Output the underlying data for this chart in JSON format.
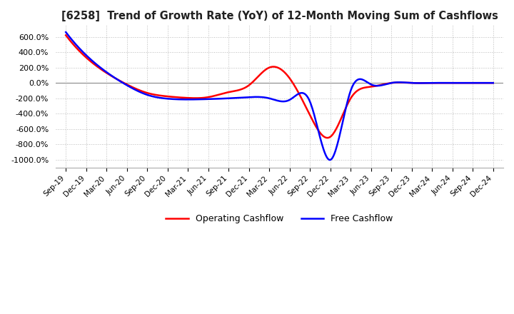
{
  "title": "[6258]  Trend of Growth Rate (YoY) of 12-Month Moving Sum of Cashflows",
  "ylim": [
    -1100,
    750
  ],
  "yticks": [
    600,
    400,
    200,
    0,
    -200,
    -400,
    -600,
    -800,
    -1000
  ],
  "background_color": "#ffffff",
  "grid_color": "#bbbbbb",
  "legend_labels": [
    "Operating Cashflow",
    "Free Cashflow"
  ],
  "legend_colors": [
    "#ff0000",
    "#0000ff"
  ],
  "x_labels": [
    "Sep-19",
    "Dec-19",
    "Mar-20",
    "Jun-20",
    "Sep-20",
    "Dec-20",
    "Mar-21",
    "Jun-21",
    "Sep-21",
    "Dec-21",
    "Mar-22",
    "Jun-22",
    "Sep-22",
    "Dec-22",
    "Mar-23",
    "Jun-23",
    "Sep-23",
    "Dec-23",
    "Mar-24",
    "Jun-24",
    "Sep-24",
    "Dec-24"
  ],
  "operating_cashflow": [
    620,
    340,
    160,
    20,
    -100,
    -160,
    -180,
    -170,
    -120,
    -50,
    200,
    90,
    -400,
    -700,
    -200,
    -50,
    0,
    0,
    0,
    0,
    0,
    0
  ],
  "free_cashflow": [
    650,
    370,
    160,
    10,
    -130,
    -195,
    -210,
    -205,
    -195,
    -185,
    -200,
    -220,
    -240,
    -1000,
    -100,
    -20,
    0,
    0,
    0,
    0,
    0,
    0
  ]
}
